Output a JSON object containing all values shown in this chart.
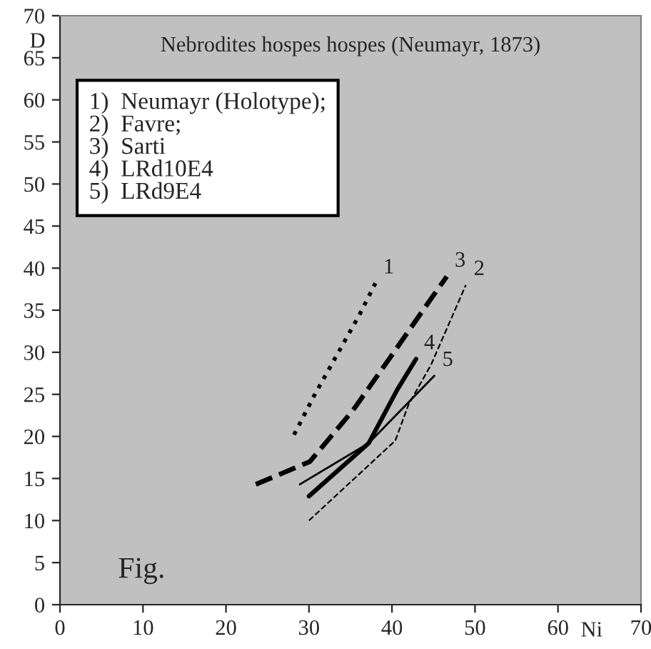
{
  "chart_data": {
    "type": "line",
    "title": "Nebrodites hospes hospes (Neumayr, 1873)",
    "xlabel": "Ni",
    "ylabel": "D",
    "xlim": [
      0,
      70
    ],
    "xticks": [
      0,
      10,
      20,
      30,
      40,
      50,
      60,
      70
    ],
    "ylim": [
      0,
      70
    ],
    "yticks": [
      0,
      5,
      10,
      15,
      20,
      25,
      30,
      35,
      40,
      45,
      50,
      55,
      60,
      65,
      70
    ],
    "grid": false,
    "legend": false,
    "marker": "none",
    "series": [
      {
        "name": "1",
        "color": "#000000",
        "line_style": "dotted",
        "x": [
          28.2,
          30.6,
          36.1,
          38
        ],
        "values": [
          20.2,
          24.8,
          34.5,
          38.2
        ]
      },
      {
        "name": "2",
        "color": "#000000",
        "line_style": "dashed",
        "x": [
          30,
          40.4,
          42,
          44.7,
          48.9
        ],
        "values": [
          10,
          19.5,
          23.8,
          28.5,
          38
        ]
      },
      {
        "name": "3",
        "color": "#000000",
        "line_style": "dashed",
        "x": [
          23.6,
          30.1,
          35.3,
          39.8,
          44.8,
          46.6
        ],
        "values": [
          14.3,
          17,
          23.1,
          29.4,
          36.5,
          39
        ]
      },
      {
        "name": "4",
        "color": "#000000",
        "line_style": "solid",
        "x": [
          30,
          37.2,
          40.6,
          42.9
        ],
        "values": [
          12.9,
          19.2,
          25.5,
          29.2
        ]
      },
      {
        "name": "5",
        "color": "#000000",
        "line_style": "solid",
        "x": [
          28.9,
          37.2,
          45.1
        ],
        "values": [
          14.3,
          19.2,
          27.2
        ]
      }
    ],
    "annotations": [
      "1)  Neumayr (Holotype);",
      "2)  Favre;",
      "3)  Sarti",
      "4)  LRd10E4",
      "5)  LRd9E4",
      "Fig."
    ]
  }
}
